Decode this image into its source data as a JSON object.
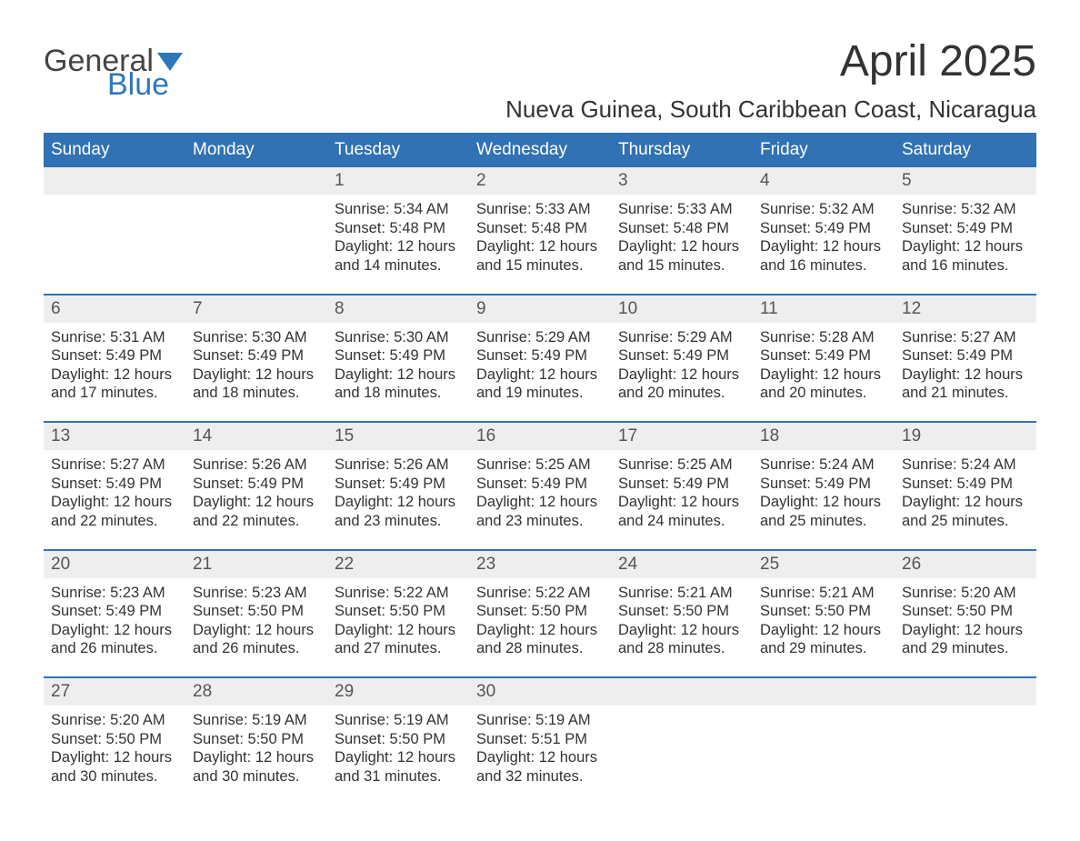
{
  "logo": {
    "line1": "General",
    "line2": "Blue",
    "flag_color": "#2f77bb",
    "text_color_gray": "#444444"
  },
  "title": "April 2025",
  "location": "Nueva Guinea, South Caribbean Coast, Nicaragua",
  "colors": {
    "header_bg": "#3072b3",
    "header_text": "#ffffff",
    "daynum_bg": "#eeeeee",
    "week_border": "#3072b3",
    "body_text": "#333333"
  },
  "fonts": {
    "title_size_pt": 36,
    "location_size_pt": 20,
    "weekday_size_pt": 14,
    "daynum_size_pt": 14,
    "body_size_pt": 12
  },
  "weekdays": [
    "Sunday",
    "Monday",
    "Tuesday",
    "Wednesday",
    "Thursday",
    "Friday",
    "Saturday"
  ],
  "weeks": [
    [
      {
        "day": "",
        "sunrise": "",
        "sunset": "",
        "daylight1": "",
        "daylight2": ""
      },
      {
        "day": "",
        "sunrise": "",
        "sunset": "",
        "daylight1": "",
        "daylight2": ""
      },
      {
        "day": "1",
        "sunrise": "Sunrise: 5:34 AM",
        "sunset": "Sunset: 5:48 PM",
        "daylight1": "Daylight: 12 hours",
        "daylight2": "and 14 minutes."
      },
      {
        "day": "2",
        "sunrise": "Sunrise: 5:33 AM",
        "sunset": "Sunset: 5:48 PM",
        "daylight1": "Daylight: 12 hours",
        "daylight2": "and 15 minutes."
      },
      {
        "day": "3",
        "sunrise": "Sunrise: 5:33 AM",
        "sunset": "Sunset: 5:48 PM",
        "daylight1": "Daylight: 12 hours",
        "daylight2": "and 15 minutes."
      },
      {
        "day": "4",
        "sunrise": "Sunrise: 5:32 AM",
        "sunset": "Sunset: 5:49 PM",
        "daylight1": "Daylight: 12 hours",
        "daylight2": "and 16 minutes."
      },
      {
        "day": "5",
        "sunrise": "Sunrise: 5:32 AM",
        "sunset": "Sunset: 5:49 PM",
        "daylight1": "Daylight: 12 hours",
        "daylight2": "and 16 minutes."
      }
    ],
    [
      {
        "day": "6",
        "sunrise": "Sunrise: 5:31 AM",
        "sunset": "Sunset: 5:49 PM",
        "daylight1": "Daylight: 12 hours",
        "daylight2": "and 17 minutes."
      },
      {
        "day": "7",
        "sunrise": "Sunrise: 5:30 AM",
        "sunset": "Sunset: 5:49 PM",
        "daylight1": "Daylight: 12 hours",
        "daylight2": "and 18 minutes."
      },
      {
        "day": "8",
        "sunrise": "Sunrise: 5:30 AM",
        "sunset": "Sunset: 5:49 PM",
        "daylight1": "Daylight: 12 hours",
        "daylight2": "and 18 minutes."
      },
      {
        "day": "9",
        "sunrise": "Sunrise: 5:29 AM",
        "sunset": "Sunset: 5:49 PM",
        "daylight1": "Daylight: 12 hours",
        "daylight2": "and 19 minutes."
      },
      {
        "day": "10",
        "sunrise": "Sunrise: 5:29 AM",
        "sunset": "Sunset: 5:49 PM",
        "daylight1": "Daylight: 12 hours",
        "daylight2": "and 20 minutes."
      },
      {
        "day": "11",
        "sunrise": "Sunrise: 5:28 AM",
        "sunset": "Sunset: 5:49 PM",
        "daylight1": "Daylight: 12 hours",
        "daylight2": "and 20 minutes."
      },
      {
        "day": "12",
        "sunrise": "Sunrise: 5:27 AM",
        "sunset": "Sunset: 5:49 PM",
        "daylight1": "Daylight: 12 hours",
        "daylight2": "and 21 minutes."
      }
    ],
    [
      {
        "day": "13",
        "sunrise": "Sunrise: 5:27 AM",
        "sunset": "Sunset: 5:49 PM",
        "daylight1": "Daylight: 12 hours",
        "daylight2": "and 22 minutes."
      },
      {
        "day": "14",
        "sunrise": "Sunrise: 5:26 AM",
        "sunset": "Sunset: 5:49 PM",
        "daylight1": "Daylight: 12 hours",
        "daylight2": "and 22 minutes."
      },
      {
        "day": "15",
        "sunrise": "Sunrise: 5:26 AM",
        "sunset": "Sunset: 5:49 PM",
        "daylight1": "Daylight: 12 hours",
        "daylight2": "and 23 minutes."
      },
      {
        "day": "16",
        "sunrise": "Sunrise: 5:25 AM",
        "sunset": "Sunset: 5:49 PM",
        "daylight1": "Daylight: 12 hours",
        "daylight2": "and 23 minutes."
      },
      {
        "day": "17",
        "sunrise": "Sunrise: 5:25 AM",
        "sunset": "Sunset: 5:49 PM",
        "daylight1": "Daylight: 12 hours",
        "daylight2": "and 24 minutes."
      },
      {
        "day": "18",
        "sunrise": "Sunrise: 5:24 AM",
        "sunset": "Sunset: 5:49 PM",
        "daylight1": "Daylight: 12 hours",
        "daylight2": "and 25 minutes."
      },
      {
        "day": "19",
        "sunrise": "Sunrise: 5:24 AM",
        "sunset": "Sunset: 5:49 PM",
        "daylight1": "Daylight: 12 hours",
        "daylight2": "and 25 minutes."
      }
    ],
    [
      {
        "day": "20",
        "sunrise": "Sunrise: 5:23 AM",
        "sunset": "Sunset: 5:49 PM",
        "daylight1": "Daylight: 12 hours",
        "daylight2": "and 26 minutes."
      },
      {
        "day": "21",
        "sunrise": "Sunrise: 5:23 AM",
        "sunset": "Sunset: 5:50 PM",
        "daylight1": "Daylight: 12 hours",
        "daylight2": "and 26 minutes."
      },
      {
        "day": "22",
        "sunrise": "Sunrise: 5:22 AM",
        "sunset": "Sunset: 5:50 PM",
        "daylight1": "Daylight: 12 hours",
        "daylight2": "and 27 minutes."
      },
      {
        "day": "23",
        "sunrise": "Sunrise: 5:22 AM",
        "sunset": "Sunset: 5:50 PM",
        "daylight1": "Daylight: 12 hours",
        "daylight2": "and 28 minutes."
      },
      {
        "day": "24",
        "sunrise": "Sunrise: 5:21 AM",
        "sunset": "Sunset: 5:50 PM",
        "daylight1": "Daylight: 12 hours",
        "daylight2": "and 28 minutes."
      },
      {
        "day": "25",
        "sunrise": "Sunrise: 5:21 AM",
        "sunset": "Sunset: 5:50 PM",
        "daylight1": "Daylight: 12 hours",
        "daylight2": "and 29 minutes."
      },
      {
        "day": "26",
        "sunrise": "Sunrise: 5:20 AM",
        "sunset": "Sunset: 5:50 PM",
        "daylight1": "Daylight: 12 hours",
        "daylight2": "and 29 minutes."
      }
    ],
    [
      {
        "day": "27",
        "sunrise": "Sunrise: 5:20 AM",
        "sunset": "Sunset: 5:50 PM",
        "daylight1": "Daylight: 12 hours",
        "daylight2": "and 30 minutes."
      },
      {
        "day": "28",
        "sunrise": "Sunrise: 5:19 AM",
        "sunset": "Sunset: 5:50 PM",
        "daylight1": "Daylight: 12 hours",
        "daylight2": "and 30 minutes."
      },
      {
        "day": "29",
        "sunrise": "Sunrise: 5:19 AM",
        "sunset": "Sunset: 5:50 PM",
        "daylight1": "Daylight: 12 hours",
        "daylight2": "and 31 minutes."
      },
      {
        "day": "30",
        "sunrise": "Sunrise: 5:19 AM",
        "sunset": "Sunset: 5:51 PM",
        "daylight1": "Daylight: 12 hours",
        "daylight2": "and 32 minutes."
      },
      {
        "day": "",
        "sunrise": "",
        "sunset": "",
        "daylight1": "",
        "daylight2": ""
      },
      {
        "day": "",
        "sunrise": "",
        "sunset": "",
        "daylight1": "",
        "daylight2": ""
      },
      {
        "day": "",
        "sunrise": "",
        "sunset": "",
        "daylight1": "",
        "daylight2": ""
      }
    ]
  ]
}
